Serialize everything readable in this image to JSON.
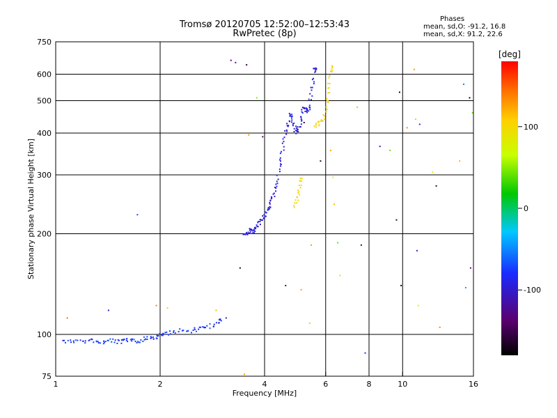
{
  "header": {
    "title": "Tromsø 20120705 12:52:00–12:53:43",
    "subtitle": "RwPretec (8p)"
  },
  "phase_stats": {
    "heading": "Phases",
    "line_o": "mean, sd,O: -91.2, 16.8",
    "line_x": "mean, sd,X:  91.2, 22.6"
  },
  "colorbar": {
    "unit": "[deg]",
    "ticks": [
      "100",
      "0",
      "-100"
    ],
    "range": [
      -180,
      180
    ]
  },
  "chart_data": {
    "type": "scatter",
    "title": "Tromsø 20120705 12:52:00–12:53:43",
    "subtitle": "RwPretec (8p)",
    "xlabel": "Frequency [MHz]",
    "ylabel": "Stationary phase Virtual Height [km]",
    "x_scale": "log",
    "y_scale": "log",
    "xlim": [
      1,
      16
    ],
    "ylim": [
      75,
      750
    ],
    "x_ticks": [
      1,
      2,
      4,
      6,
      8,
      10,
      16
    ],
    "x_tick_labels": [
      "1",
      "2",
      "4",
      "6",
      "8",
      "10",
      "16"
    ],
    "y_ticks": [
      75,
      100,
      200,
      300,
      400,
      500,
      600,
      750
    ],
    "y_tick_labels": [
      "75",
      "100",
      "200",
      "300",
      "400",
      "500",
      "600",
      "750"
    ],
    "grid_x": [
      2,
      4,
      6,
      8,
      10
    ],
    "grid_y": [
      100,
      200,
      300,
      400,
      500,
      600
    ],
    "color_axis": "phase [deg]",
    "series": [
      {
        "traces": [
          {
            "phase": -95,
            "points": [
              [
                1.05,
                96
              ],
              [
                1.1,
                95
              ],
              [
                1.15,
                96
              ],
              [
                1.2,
                95
              ],
              [
                1.25,
                96
              ],
              [
                1.3,
                95
              ],
              [
                1.35,
                95
              ],
              [
                1.4,
                95
              ],
              [
                1.45,
                96
              ],
              [
                1.5,
                95
              ],
              [
                1.55,
                95
              ],
              [
                1.6,
                96
              ],
              [
                1.65,
                96
              ],
              [
                1.7,
                95
              ],
              [
                1.75,
                96
              ],
              [
                1.8,
                97
              ],
              [
                1.85,
                98
              ],
              [
                1.9,
                97
              ],
              [
                1.95,
                98
              ],
              [
                2.0,
                99
              ],
              [
                2.05,
                100
              ],
              [
                2.1,
                101
              ],
              [
                2.2,
                102
              ],
              [
                2.3,
                103
              ],
              [
                2.4,
                102
              ],
              [
                2.5,
                103
              ],
              [
                2.6,
                104
              ],
              [
                2.7,
                105
              ],
              [
                2.8,
                106
              ],
              [
                2.9,
                108
              ],
              [
                3.0,
                110
              ]
            ]
          },
          {
            "phase": -110,
            "points": [
              [
                3.5,
                198
              ],
              [
                3.55,
                200
              ],
              [
                3.6,
                202
              ],
              [
                3.65,
                205
              ],
              [
                3.7,
                203
              ],
              [
                3.75,
                206
              ],
              [
                3.8,
                210
              ],
              [
                3.85,
                213
              ],
              [
                3.9,
                218
              ],
              [
                3.95,
                222
              ],
              [
                4.0,
                228
              ],
              [
                4.05,
                232
              ],
              [
                4.1,
                238
              ],
              [
                4.15,
                245
              ],
              [
                4.2,
                252
              ],
              [
                4.25,
                262
              ],
              [
                4.3,
                275
              ],
              [
                4.35,
                290
              ],
              [
                4.4,
                310
              ],
              [
                4.45,
                330
              ],
              [
                4.5,
                350
              ],
              [
                4.55,
                375
              ],
              [
                4.6,
                400
              ],
              [
                4.65,
                420
              ],
              [
                4.7,
                440
              ],
              [
                4.75,
                455
              ],
              [
                4.8,
                445
              ],
              [
                4.85,
                425
              ],
              [
                4.9,
                410
              ],
              [
                4.95,
                400
              ],
              [
                5.0,
                408
              ],
              [
                5.05,
                420
              ],
              [
                5.1,
                440
              ],
              [
                5.15,
                465
              ],
              [
                5.2,
                480
              ],
              [
                5.25,
                475
              ],
              [
                5.3,
                465
              ],
              [
                5.35,
                470
              ],
              [
                5.4,
                490
              ],
              [
                5.45,
                520
              ],
              [
                5.5,
                560
              ],
              [
                5.55,
                600
              ],
              [
                5.6,
                630
              ]
            ]
          },
          {
            "phase": 105,
            "points": [
              [
                5.6,
                420
              ],
              [
                5.7,
                425
              ],
              [
                5.8,
                430
              ],
              [
                5.9,
                440
              ],
              [
                6.0,
                460
              ],
              [
                6.05,
                490
              ],
              [
                6.1,
                520
              ],
              [
                6.15,
                560
              ],
              [
                6.2,
                600
              ],
              [
                6.25,
                630
              ]
            ]
          },
          {
            "phase": 100,
            "points": [
              [
                4.9,
                240
              ],
              [
                4.95,
                250
              ],
              [
                5.0,
                262
              ],
              [
                5.05,
                275
              ],
              [
                5.1,
                290
              ]
            ]
          }
        ],
        "scatter": [
          {
            "f": 1.08,
            "h": 112,
            "phase": 150
          },
          {
            "f": 1.42,
            "h": 118,
            "phase": -120
          },
          {
            "f": 1.72,
            "h": 228,
            "phase": -85
          },
          {
            "f": 1.95,
            "h": 122,
            "phase": 145
          },
          {
            "f": 2.1,
            "h": 120,
            "phase": 110
          },
          {
            "f": 2.9,
            "h": 118,
            "phase": 120
          },
          {
            "f": 3.1,
            "h": 112,
            "phase": -120
          },
          {
            "f": 3.2,
            "h": 660,
            "phase": -140
          },
          {
            "f": 3.3,
            "h": 650,
            "phase": -120
          },
          {
            "f": 3.4,
            "h": 158,
            "phase": -165
          },
          {
            "f": 3.5,
            "h": 76,
            "phase": 130
          },
          {
            "f": 3.55,
            "h": 640,
            "phase": -160
          },
          {
            "f": 3.6,
            "h": 395,
            "phase": 130
          },
          {
            "f": 3.8,
            "h": 510,
            "phase": 40
          },
          {
            "f": 3.95,
            "h": 390,
            "phase": -140
          },
          {
            "f": 4.6,
            "h": 140,
            "phase": -150
          },
          {
            "f": 5.1,
            "h": 136,
            "phase": 130
          },
          {
            "f": 5.2,
            "h": 430,
            "phase": -160
          },
          {
            "f": 5.4,
            "h": 108,
            "phase": 110
          },
          {
            "f": 5.45,
            "h": 185,
            "phase": 30
          },
          {
            "f": 5.8,
            "h": 330,
            "phase": -160
          },
          {
            "f": 6.2,
            "h": 355,
            "phase": 130
          },
          {
            "f": 6.3,
            "h": 295,
            "phase": 60
          },
          {
            "f": 6.35,
            "h": 245,
            "phase": 120
          },
          {
            "f": 6.5,
            "h": 188,
            "phase": 30
          },
          {
            "f": 6.6,
            "h": 150,
            "phase": 110
          },
          {
            "f": 7.4,
            "h": 478,
            "phase": 120
          },
          {
            "f": 7.6,
            "h": 185,
            "phase": -150
          },
          {
            "f": 7.8,
            "h": 88,
            "phase": -100
          },
          {
            "f": 8.6,
            "h": 365,
            "phase": -120
          },
          {
            "f": 9.2,
            "h": 355,
            "phase": 30
          },
          {
            "f": 9.6,
            "h": 220,
            "phase": -160
          },
          {
            "f": 9.8,
            "h": 530,
            "phase": -170
          },
          {
            "f": 9.9,
            "h": 140,
            "phase": -170
          },
          {
            "f": 10.3,
            "h": 415,
            "phase": 140
          },
          {
            "f": 10.8,
            "h": 620,
            "phase": 130
          },
          {
            "f": 10.9,
            "h": 440,
            "phase": 50
          },
          {
            "f": 11.0,
            "h": 178,
            "phase": -120
          },
          {
            "f": 11.1,
            "h": 122,
            "phase": 60
          },
          {
            "f": 11.2,
            "h": 425,
            "phase": -100
          },
          {
            "f": 12.2,
            "h": 306,
            "phase": 60
          },
          {
            "f": 12.5,
            "h": 278,
            "phase": -160
          },
          {
            "f": 12.8,
            "h": 105,
            "phase": 140
          },
          {
            "f": 14.6,
            "h": 330,
            "phase": 120
          },
          {
            "f": 15.0,
            "h": 560,
            "phase": -70
          },
          {
            "f": 15.2,
            "h": 138,
            "phase": -60
          },
          {
            "f": 15.6,
            "h": 510,
            "phase": -170
          },
          {
            "f": 15.7,
            "h": 158,
            "phase": -140
          },
          {
            "f": 15.9,
            "h": 460,
            "phase": 30
          }
        ]
      }
    ]
  }
}
